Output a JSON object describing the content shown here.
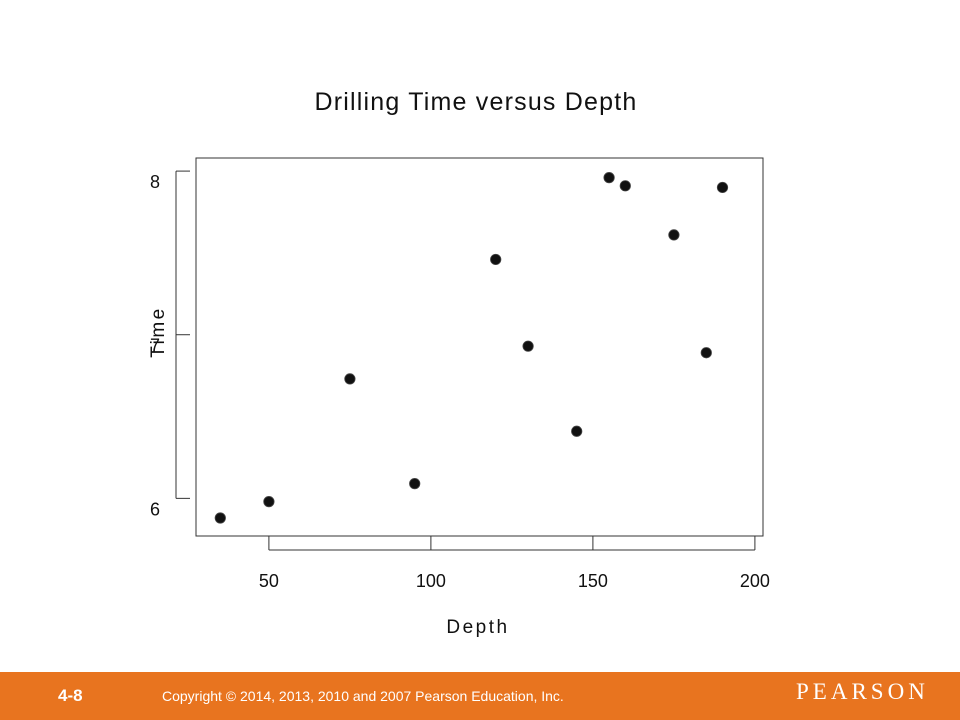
{
  "chart_data": {
    "type": "scatter",
    "title": "Drilling Time versus Depth",
    "xlabel": "Depth",
    "ylabel": "Time",
    "xlim": [
      27.5,
      202.5
    ],
    "ylim": [
      5.77,
      8.08
    ],
    "xticks": [
      50,
      100,
      150,
      200
    ],
    "yticks": [
      6,
      7,
      8
    ],
    "grid": false,
    "points": [
      {
        "x": 35,
        "y": 5.88
      },
      {
        "x": 50,
        "y": 5.98
      },
      {
        "x": 75,
        "y": 6.73
      },
      {
        "x": 95,
        "y": 6.09
      },
      {
        "x": 120,
        "y": 7.46
      },
      {
        "x": 130,
        "y": 6.93
      },
      {
        "x": 145,
        "y": 6.41
      },
      {
        "x": 155,
        "y": 7.96
      },
      {
        "x": 160,
        "y": 7.91
      },
      {
        "x": 175,
        "y": 7.61
      },
      {
        "x": 185,
        "y": 6.89
      },
      {
        "x": 190,
        "y": 7.9
      }
    ]
  },
  "footer": {
    "slide_number": "4-8",
    "copyright": "Copyright © 2014, 2013, 2010 and 2007 Pearson Education, Inc.",
    "brand": "PEARSON",
    "background_color": "#e8741f"
  }
}
